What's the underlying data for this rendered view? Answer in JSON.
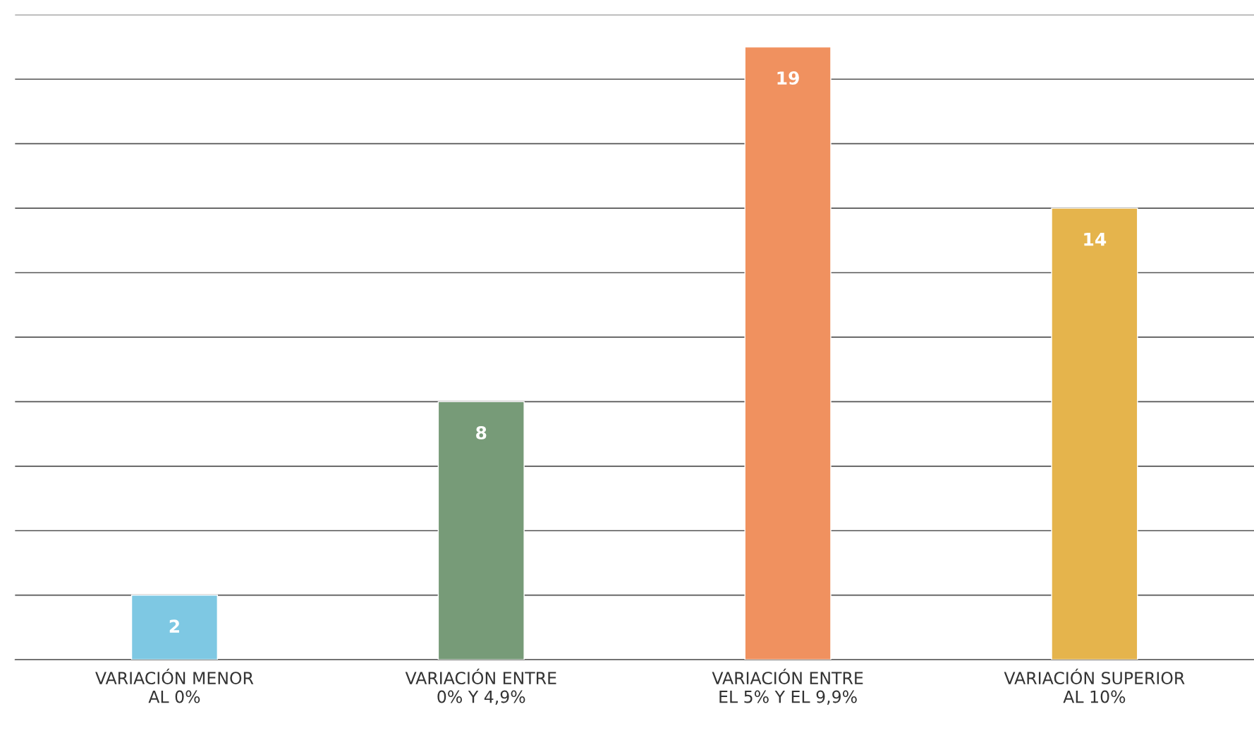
{
  "chart_data": {
    "type": "bar",
    "categories": [
      "VARIACIÓN MENOR\nAL 0%",
      "VARIACIÓN ENTRE\n0% Y 4,9%",
      "VARIACIÓN ENTRE\nEL 5% Y EL 9,9%",
      "VARIACIÓN SUPERIOR\nAL 10%"
    ],
    "values": [
      2,
      8,
      19,
      14
    ],
    "colors": [
      "#7ec8e3",
      "#779b78",
      "#f0915f",
      "#e5b44c"
    ],
    "ylim": [
      0,
      20
    ],
    "yticks": [
      {
        "value": 0,
        "label": null
      },
      {
        "value": 2,
        "label": null
      },
      {
        "value": 4,
        "label": null
      },
      {
        "value": 6,
        "label": null
      },
      {
        "value": 8,
        "label": null
      },
      {
        "value": 10,
        "label": null
      },
      {
        "value": 12,
        "label": null
      },
      {
        "value": 14,
        "label": null
      },
      {
        "value": 16,
        "label": null
      },
      {
        "value": 18,
        "label": null
      },
      {
        "value": 20,
        "label": null
      }
    ],
    "grid": "y",
    "data_labels": true,
    "tick_labels": "x"
  }
}
